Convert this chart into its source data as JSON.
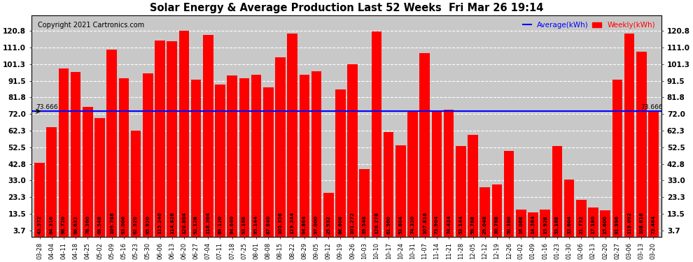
{
  "title": "Solar Energy & Average Production Last 52 Weeks  Fri Mar 26 19:14",
  "copyright": "Copyright 2021 Cartronics.com",
  "average_line": 73.666,
  "average_label": "73.666",
  "bar_color": "#FF0000",
  "average_line_color": "#0000FF",
  "background_color": "#FFFFFF",
  "plot_bg_color": "#C8C8C8",
  "grid_color": "#FFFFFF",
  "ylim": [
    0,
    130
  ],
  "yticks": [
    3.7,
    13.5,
    23.3,
    33.0,
    42.8,
    52.5,
    62.3,
    72.0,
    81.8,
    91.5,
    101.3,
    111.0,
    120.8
  ],
  "legend_average": "Average(kWh)",
  "legend_weekly": "Weekly(kWh)",
  "categories": [
    "03-28",
    "04-04",
    "04-11",
    "04-18",
    "04-25",
    "05-02",
    "05-09",
    "05-16",
    "05-23",
    "05-30",
    "06-06",
    "06-13",
    "06-20",
    "06-27",
    "07-04",
    "07-11",
    "07-18",
    "07-25",
    "08-01",
    "08-08",
    "08-15",
    "08-22",
    "08-29",
    "09-05",
    "09-12",
    "09-19",
    "09-26",
    "10-03",
    "10-10",
    "10-17",
    "10-24",
    "10-31",
    "11-07",
    "11-14",
    "11-21",
    "11-28",
    "12-05",
    "12-12",
    "12-19",
    "12-26",
    "01-02",
    "01-09",
    "01-16",
    "01-23",
    "01-30",
    "02-06",
    "02-13",
    "02-20",
    "02-27",
    "03-06",
    "03-13",
    "03-20"
  ],
  "values": [
    43.372,
    64.316,
    98.72,
    96.632,
    76.36,
    69.548,
    109.788,
    93.008,
    62.32,
    95.92,
    115.24,
    114.828,
    120.804,
    92.128,
    118.304,
    89.12,
    94.64,
    93.168,
    95.144,
    87.84,
    105.356,
    119.244,
    94.864,
    97.0,
    25.932,
    86.608,
    101.272,
    39.548,
    120.278,
    61.56,
    53.604,
    74.32,
    107.816,
    73.904,
    74.424,
    53.144,
    59.768,
    29.048,
    30.768,
    50.38,
    16.068,
    14.384,
    15.928,
    53.168,
    33.604,
    21.732,
    17.18,
    15.6,
    91.996,
    119.092,
    108.616,
    73.464
  ],
  "bar_labels": [
    "43.372",
    "64.316",
    "98.720",
    "96.632",
    "76.360",
    "69.548",
    "109.788",
    "93.008",
    "62.320",
    "95.920",
    "115.240",
    "114.828",
    "120.804",
    "92.128",
    "118.304",
    "89.120",
    "94.640",
    "93.168",
    "95.144",
    "87.840",
    "105.356",
    "119.244",
    "94.864",
    "97.000",
    "25.932",
    "86.608",
    "101.272",
    "39.548",
    "120.278",
    "61.560",
    "53.604",
    "74.320",
    "107.816",
    "73.904",
    "74.424",
    "53.144",
    "59.768",
    "29.048",
    "30.768",
    "50.380",
    "16.068",
    "14.384",
    "15.928",
    "53.168",
    "33.604",
    "21.732",
    "17.180",
    "15.600",
    "91.996",
    "119.092",
    "108.616",
    "73.464"
  ]
}
